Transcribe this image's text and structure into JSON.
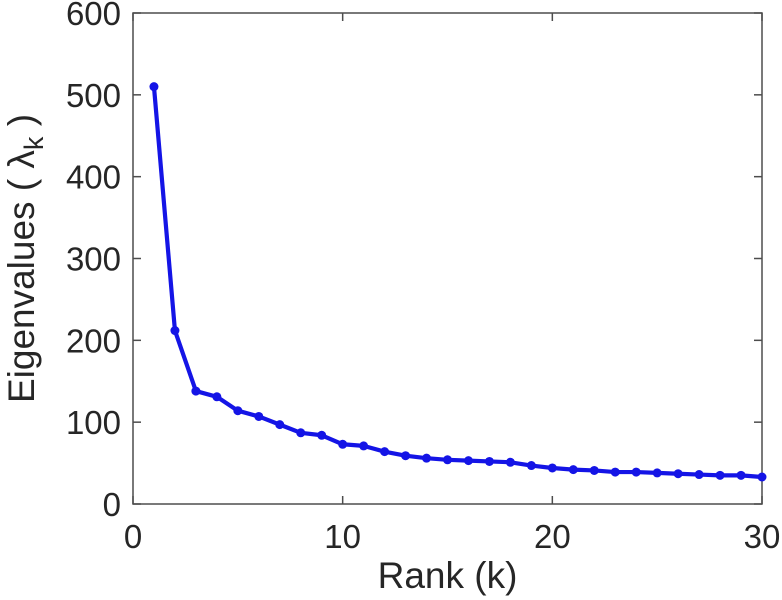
{
  "figure": {
    "background": "#ffffff"
  },
  "chart_data": {
    "type": "line",
    "title": "",
    "xlabel": "Rank (k)",
    "ylabel": {
      "prefix": "Eigenvalues ( ",
      "symbol": "λ",
      "subscript": "k",
      "suffix": " )"
    },
    "x": [
      1,
      2,
      3,
      4,
      5,
      6,
      7,
      8,
      9,
      10,
      11,
      12,
      13,
      14,
      15,
      16,
      17,
      18,
      19,
      20,
      21,
      22,
      23,
      24,
      25,
      26,
      27,
      28,
      29,
      30
    ],
    "values": [
      510,
      212,
      138,
      131,
      114,
      107,
      97,
      87,
      84,
      73,
      71,
      64,
      59,
      56,
      54,
      53,
      52,
      51,
      47,
      44,
      42,
      41,
      39,
      39,
      38,
      37,
      36,
      35,
      35,
      33
    ],
    "series_name": "eigenvalues",
    "xlim": [
      0,
      30
    ],
    "ylim": [
      0,
      600
    ],
    "x_ticks": [
      0,
      10,
      20,
      30
    ],
    "y_ticks": [
      0,
      100,
      200,
      300,
      400,
      500,
      600
    ],
    "grid": false,
    "legend": null,
    "marker": "filled-circle",
    "line_color": "#1414E6",
    "axis_color": "#4D4D4D",
    "text_color": "#262626"
  }
}
